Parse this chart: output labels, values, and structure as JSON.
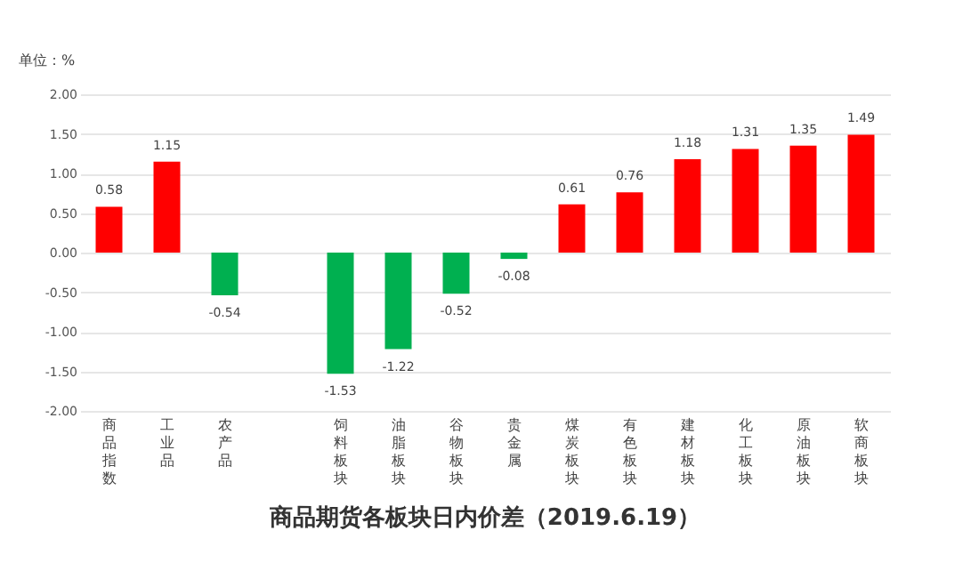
{
  "chart_data": {
    "type": "bar",
    "title": "商品期货各板块日内价差（2019.6.19）",
    "ylabel": "单位：%",
    "categories": [
      "商品指数",
      "工业品",
      "农产品",
      null,
      "饲料板块",
      "油脂板块",
      "谷物板块",
      "贵金属",
      "煤炭板块",
      "有色板块",
      "建材板块",
      "化工板块",
      "原油板块",
      "软商板块"
    ],
    "values": [
      0.58,
      1.15,
      -0.54,
      null,
      -1.53,
      -1.22,
      -0.52,
      -0.08,
      0.61,
      0.76,
      1.18,
      1.31,
      1.35,
      1.49
    ],
    "colors": [
      "#ff0000",
      "#ff0000",
      "#00b050",
      "#00b050",
      "#00b050",
      "#00b050",
      "#00b050",
      "#00b050",
      "#ff0000",
      "#ff0000",
      "#ff0000",
      "#ff0000",
      "#ff0000",
      "#ff0000"
    ],
    "ylim": [
      -2.0,
      2.0
    ],
    "yticks": [
      {
        "value": -2.0,
        "label": "-2.00"
      },
      {
        "value": -1.5,
        "label": "-1.50"
      },
      {
        "value": -1.0,
        "label": "-1.00"
      },
      {
        "value": -0.5,
        "label": "-0.50"
      },
      {
        "value": 0.0,
        "label": "0.00"
      },
      {
        "value": 0.5,
        "label": "0.50"
      },
      {
        "value": 1.0,
        "label": "1.00"
      },
      {
        "value": 1.5,
        "label": "1.50"
      },
      {
        "value": 2.0,
        "label": "2.00"
      }
    ],
    "data_labels": true,
    "grid": "y"
  }
}
